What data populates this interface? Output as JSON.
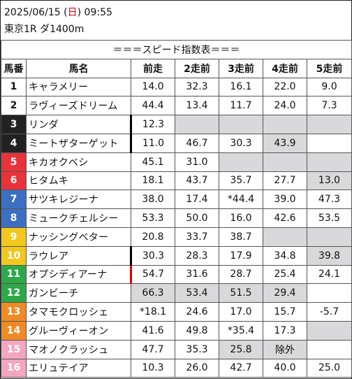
{
  "header": {
    "date": "2025/06/15",
    "dow_open": " (",
    "dow": "日",
    "dow_close": ")",
    "time": " 09:55",
    "race": "東京1R ダ1400m"
  },
  "table": {
    "title": "＝＝＝スピード指数表＝＝＝",
    "columns": [
      "馬番",
      "馬名",
      "前走",
      "2走前",
      "3走前",
      "4走前",
      "5走前"
    ],
    "rows": [
      {
        "num": "1",
        "name": "キャラメリー",
        "vals": [
          "14.0",
          "32.3",
          "16.1",
          "22.0",
          "9.0"
        ],
        "bg": "#ffffff",
        "fg": "#111111",
        "gray": [
          false,
          false,
          false,
          false,
          false
        ],
        "mark": ""
      },
      {
        "num": "2",
        "name": "ラヴィーズドリーム",
        "vals": [
          "44.4",
          "13.4",
          "11.7",
          "24.0",
          "7.3"
        ],
        "bg": "#ffffff",
        "fg": "#111111",
        "gray": [
          false,
          false,
          false,
          false,
          false
        ],
        "mark": ""
      },
      {
        "num": "3",
        "name": "リンダ",
        "vals": [
          "12.3",
          "",
          "",
          "",
          ""
        ],
        "bg": "#222222",
        "fg": "#ffffff",
        "gray": [
          false,
          true,
          true,
          true,
          true
        ],
        "mark": "k"
      },
      {
        "num": "4",
        "name": "ミートザターゲット",
        "vals": [
          "11.0",
          "46.7",
          "30.3",
          "43.9",
          ""
        ],
        "bg": "#222222",
        "fg": "#ffffff",
        "gray": [
          false,
          false,
          false,
          true,
          false
        ],
        "mark": "k"
      },
      {
        "num": "5",
        "name": "キカオクベシ",
        "vals": [
          "45.1",
          "31.0",
          "",
          "",
          ""
        ],
        "bg": "#e8333a",
        "fg": "#ffffff",
        "gray": [
          false,
          false,
          true,
          true,
          true
        ],
        "mark": ""
      },
      {
        "num": "6",
        "name": "ヒタムキ",
        "vals": [
          "18.1",
          "43.7",
          "35.7",
          "27.7",
          "13.0"
        ],
        "bg": "#e8333a",
        "fg": "#ffffff",
        "gray": [
          false,
          false,
          false,
          false,
          true
        ],
        "mark": ""
      },
      {
        "num": "7",
        "name": "サツキレジーナ",
        "vals": [
          "38.0",
          "17.4",
          "*44.4",
          "39.0",
          "47.3"
        ],
        "bg": "#3b6fc2",
        "fg": "#ffffff",
        "gray": [
          false,
          false,
          false,
          false,
          false
        ],
        "mark": ""
      },
      {
        "num": "8",
        "name": "ミュークチェルシー",
        "vals": [
          "53.3",
          "50.0",
          "16.0",
          "42.6",
          "53.5"
        ],
        "bg": "#3b6fc2",
        "fg": "#ffffff",
        "gray": [
          false,
          false,
          false,
          false,
          false
        ],
        "mark": ""
      },
      {
        "num": "9",
        "name": "ナッシングベター",
        "vals": [
          "20.8",
          "33.7",
          "38.7",
          "",
          ""
        ],
        "bg": "#f2c81e",
        "fg": "#ffffff",
        "gray": [
          false,
          false,
          false,
          true,
          true
        ],
        "mark": ""
      },
      {
        "num": "10",
        "name": "ラウレア",
        "vals": [
          "30.3",
          "28.3",
          "17.9",
          "34.8",
          "39.8"
        ],
        "bg": "#f2c81e",
        "fg": "#ffffff",
        "gray": [
          false,
          false,
          false,
          false,
          true
        ],
        "mark": "k"
      },
      {
        "num": "11",
        "name": "オプシディアーナ",
        "vals": [
          "54.7",
          "31.6",
          "28.7",
          "25.4",
          "24.1"
        ],
        "bg": "#2fa84a",
        "fg": "#ffffff",
        "gray": [
          false,
          false,
          false,
          false,
          false
        ],
        "mark": "r"
      },
      {
        "num": "12",
        "name": "ガンビーチ",
        "vals": [
          "66.3",
          "53.4",
          "51.5",
          "29.4",
          ""
        ],
        "bg": "#2fa84a",
        "fg": "#ffffff",
        "gray": [
          true,
          true,
          true,
          true,
          false
        ],
        "mark": ""
      },
      {
        "num": "13",
        "name": "タマモクロッシェ",
        "vals": [
          "*18.1",
          "24.6",
          "17.0",
          "15.7",
          "-5.7"
        ],
        "bg": "#f08a24",
        "fg": "#ffffff",
        "gray": [
          false,
          false,
          false,
          false,
          false
        ],
        "mark": ""
      },
      {
        "num": "14",
        "name": "グルーヴィーオン",
        "vals": [
          "41.6",
          "49.8",
          "*35.4",
          "17.3",
          ""
        ],
        "bg": "#f08a24",
        "fg": "#ffffff",
        "gray": [
          false,
          false,
          false,
          false,
          true
        ],
        "mark": ""
      },
      {
        "num": "15",
        "name": "マオノクラッシュ",
        "vals": [
          "47.7",
          "35.3",
          "25.8",
          "除外",
          ""
        ],
        "bg": "#f4a6c0",
        "fg": "#ffffff",
        "gray": [
          false,
          false,
          true,
          true,
          false
        ],
        "mark": ""
      },
      {
        "num": "16",
        "name": "エリュテイア",
        "vals": [
          "10.3",
          "26.0",
          "42.7",
          "40.0",
          "25.0"
        ],
        "bg": "#f4a6c0",
        "fg": "#ffffff",
        "gray": [
          false,
          false,
          false,
          false,
          false
        ],
        "mark": ""
      }
    ]
  }
}
